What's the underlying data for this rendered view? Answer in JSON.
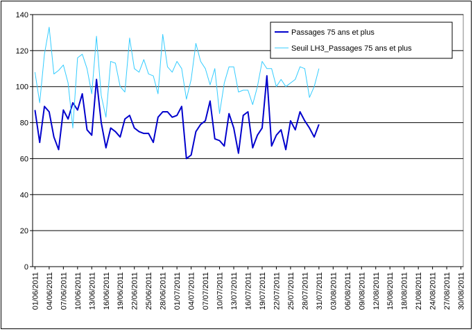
{
  "chart_data": {
    "type": "line",
    "categories": [
      "01/06/2011",
      null,
      null,
      "04/06/2011",
      null,
      null,
      "07/06/2011",
      null,
      null,
      "10/06/2011",
      null,
      null,
      "13/06/2011",
      null,
      null,
      "16/06/2011",
      null,
      null,
      "19/06/2011",
      null,
      null,
      "22/06/2011",
      null,
      null,
      "25/06/2011",
      null,
      null,
      "28/06/2011",
      null,
      null,
      "01/07/2011",
      null,
      null,
      "04/07/2011",
      null,
      null,
      "07/07/2011",
      null,
      null,
      "10/07/2011",
      null,
      null,
      "13/07/2011",
      null,
      null,
      "16/07/2011",
      null,
      null,
      "19/07/2011",
      null,
      null,
      "22/07/2011",
      null,
      null,
      "25/07/2011",
      null,
      null,
      "28/07/2011",
      null,
      null,
      "31/07/2011",
      null,
      null,
      "03/08/2011",
      null,
      null,
      "06/08/2011",
      null,
      null,
      "09/08/2011",
      null,
      null,
      "12/08/2011",
      null,
      null,
      "15/08/2011",
      null,
      null,
      "18/08/2011",
      null,
      null,
      "21/08/2011",
      null,
      null,
      "24/08/2011",
      null,
      null,
      "27/08/2011",
      null,
      null,
      "30/08/2011"
    ],
    "series": [
      {
        "name": "Passages 75 ans et plus",
        "color": "#0000cc",
        "values": [
          87,
          69,
          89,
          86,
          72,
          65,
          87,
          82,
          91,
          87,
          96,
          76,
          73,
          104,
          80,
          66,
          77,
          75,
          72,
          82,
          84,
          77,
          75,
          74,
          74,
          69,
          83,
          86,
          86,
          83,
          84,
          89,
          60,
          62,
          75,
          79,
          81,
          92,
          71,
          70,
          67,
          85,
          77,
          63,
          84,
          86,
          66,
          73,
          77,
          106,
          67,
          73,
          76,
          65,
          81,
          76,
          86,
          81,
          77,
          72,
          79,
          null,
          null,
          null,
          null,
          null,
          null,
          null,
          null,
          null,
          null,
          null,
          null,
          null,
          null,
          null,
          null,
          null,
          null,
          null,
          null,
          null,
          null,
          null,
          null,
          null,
          null,
          null,
          null,
          null,
          null
        ]
      },
      {
        "name": "Seuil LH3_Passages 75 ans et plus",
        "color": "#33ccff",
        "values": [
          108,
          91,
          118,
          133,
          107,
          109,
          112,
          102,
          77,
          116,
          118,
          110,
          96,
          128,
          95,
          83,
          114,
          113,
          100,
          97,
          127,
          110,
          108,
          115,
          107,
          106,
          96,
          129,
          111,
          108,
          114,
          110,
          93,
          104,
          124,
          114,
          110,
          101,
          110,
          85,
          102,
          111,
          111,
          97,
          98,
          98,
          90,
          100,
          114,
          110,
          110,
          100,
          104,
          100,
          102,
          104,
          111,
          110,
          94,
          100,
          110,
          null,
          null,
          null,
          null,
          null,
          null,
          null,
          null,
          null,
          null,
          null,
          null,
          null,
          null,
          null,
          null,
          null,
          null,
          null,
          null,
          null,
          null,
          null,
          null,
          null,
          null,
          null,
          null,
          null,
          null
        ]
      }
    ],
    "ylim": [
      0,
      140
    ],
    "yticks": [
      0,
      20,
      40,
      60,
      80,
      100,
      120,
      140
    ],
    "grid": true,
    "legend": "upper right"
  }
}
